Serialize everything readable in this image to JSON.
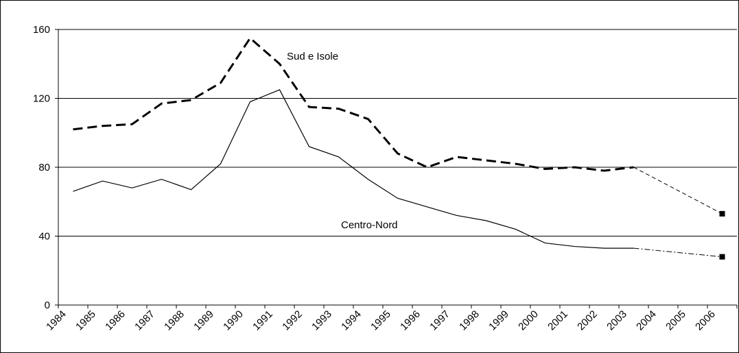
{
  "chart_data": {
    "type": "line",
    "categories": [
      "1984",
      "1985",
      "1986",
      "1987",
      "1988",
      "1989",
      "1990",
      "1991",
      "1992",
      "1993",
      "1994",
      "1995",
      "1996",
      "1997",
      "1998",
      "1999",
      "2000",
      "2001",
      "2002",
      "2003",
      "2004",
      "2005",
      "2006"
    ],
    "series": [
      {
        "name": "Sud e Isole",
        "color": "#000000",
        "values": [
          102,
          104,
          105,
          117,
          119,
          129,
          155,
          140,
          115,
          114,
          108,
          88,
          80,
          86,
          84,
          82,
          79,
          80,
          78,
          80,
          null,
          null,
          53
        ]
      },
      {
        "name": "Centro-Nord",
        "color": "#000000",
        "values": [
          66,
          72,
          68,
          73,
          67,
          82,
          118,
          125,
          92,
          86,
          73,
          62,
          57,
          52,
          49,
          44,
          36,
          34,
          33,
          33,
          null,
          null,
          28
        ]
      }
    ],
    "ylim": [
      0,
      160
    ],
    "yticks": [
      0,
      40,
      80,
      120,
      160
    ],
    "grid": true
  }
}
